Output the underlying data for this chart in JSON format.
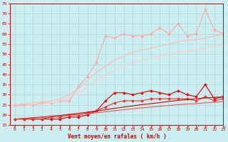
{
  "background_color": "#cceef0",
  "grid_color": "#aadddd",
  "xlabel": "Vent moyen/en rafales ( km/h )",
  "xlabel_color": "#cc0000",
  "tick_color": "#cc0000",
  "xlim": [
    -0.5,
    23
  ],
  "ylim": [
    15,
    75
  ],
  "yticks": [
    15,
    20,
    25,
    30,
    35,
    40,
    45,
    50,
    55,
    60,
    65,
    70,
    75
  ],
  "xticks": [
    0,
    1,
    2,
    3,
    4,
    5,
    6,
    7,
    8,
    9,
    10,
    11,
    12,
    13,
    14,
    15,
    16,
    17,
    18,
    19,
    20,
    21,
    22,
    23
  ],
  "series": [
    {
      "color": "#ffaaaa",
      "linewidth": 0.8,
      "marker": "D",
      "markersize": 1.5,
      "y": [
        25,
        25,
        25,
        26,
        26,
        27,
        27,
        34,
        39,
        46,
        59,
        58,
        60,
        59,
        59,
        60,
        63,
        60,
        65,
        59,
        60,
        72,
        62,
        60
      ]
    },
    {
      "color": "#ffbbbb",
      "linewidth": 0.8,
      "marker": null,
      "markersize": 0,
      "y": [
        25,
        25.5,
        26,
        26.5,
        27,
        28,
        30,
        33,
        37,
        41,
        44,
        47,
        49,
        51,
        52,
        53,
        54,
        55,
        56,
        57,
        57,
        58,
        59,
        60
      ]
    },
    {
      "color": "#ffcccc",
      "linewidth": 0.8,
      "marker": null,
      "markersize": 0,
      "y": [
        24,
        24.5,
        25,
        25.5,
        26,
        27,
        28.5,
        31,
        34,
        37,
        40,
        42,
        44,
        46,
        47,
        48,
        49,
        50,
        51,
        51.5,
        52,
        53,
        54,
        55
      ]
    },
    {
      "color": "#dd1111",
      "linewidth": 0.9,
      "marker": "D",
      "markersize": 1.5,
      "y": [
        18,
        18,
        18,
        18,
        18,
        18,
        19,
        19,
        20,
        22,
        27,
        31,
        31,
        30,
        31,
        32,
        31,
        30,
        32,
        30,
        29,
        35,
        28,
        29
      ]
    },
    {
      "color": "#ee3333",
      "linewidth": 0.8,
      "marker": "D",
      "markersize": 1.5,
      "y": [
        18,
        18,
        18,
        18,
        19,
        19,
        20,
        20,
        21,
        22,
        24,
        26,
        27,
        27,
        27,
        28,
        28,
        28,
        28,
        28,
        27,
        29,
        27,
        28
      ]
    },
    {
      "color": "#cc0000",
      "linewidth": 0.8,
      "marker": null,
      "markersize": 0,
      "y": [
        18,
        18.3,
        18.7,
        19.0,
        19.4,
        19.8,
        20.3,
        20.8,
        21.4,
        22.0,
        22.6,
        23.3,
        23.9,
        24.5,
        25.1,
        25.6,
        26.1,
        26.7,
        27.2,
        27.6,
        28.0,
        28.4,
        28.7,
        29.0
      ]
    },
    {
      "color": "#ee5555",
      "linewidth": 0.8,
      "marker": null,
      "markersize": 0,
      "y": [
        18,
        18.2,
        18.5,
        18.8,
        19.1,
        19.4,
        19.8,
        20.2,
        20.6,
        21.1,
        21.6,
        22.1,
        22.6,
        23.1,
        23.5,
        23.9,
        24.3,
        24.7,
        25.1,
        25.4,
        25.6,
        26.0,
        26.3,
        26.6
      ]
    }
  ],
  "wind_arrows": {
    "color": "#cc0000",
    "angles": [
      5,
      8,
      12,
      15,
      18,
      20,
      22,
      24,
      26,
      28,
      30,
      32,
      34,
      36,
      38,
      38,
      40,
      40,
      42,
      42,
      43,
      44,
      44,
      45
    ]
  }
}
